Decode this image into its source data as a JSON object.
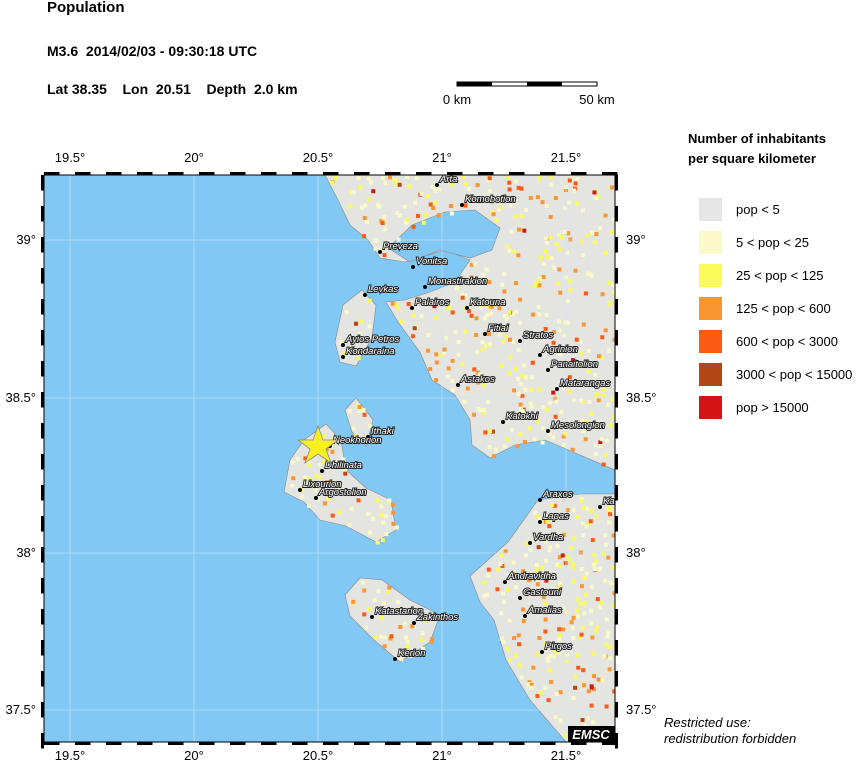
{
  "header": {
    "title": "Population",
    "event": "M3.6  2014/02/03 - 09:30:18 UTC",
    "location": "Lat 38.35    Lon  20.51    Depth  2.0 km"
  },
  "scale_bar": {
    "start": "0 km",
    "end": "50 km"
  },
  "axes": {
    "lon_ticks": [
      "19.5°",
      "20°",
      "20.5°",
      "21°",
      "21.5°"
    ],
    "lat_ticks": [
      "39°",
      "38.5°",
      "38°",
      "37.5°"
    ]
  },
  "towns": [
    "Arta",
    "Komobotion",
    "Preveza",
    "Vonitsa",
    "Levkas",
    "Monastirakion",
    "Palairos",
    "Katouna",
    "Ayios Petros",
    "Kondaraina",
    "Fitiai",
    "Stratos",
    "Agrinion",
    "Panaitolion",
    "Matarangas",
    "Astakos",
    "Katokhi",
    "Mesolongion",
    "Ithaki",
    "Neokhorion",
    "Dhilinata",
    "Lixourion",
    "Argostolion",
    "Araxos",
    "Lapas",
    "Vardha",
    "Andravidha",
    "Gastouni",
    "Amalias",
    "Katastarion",
    "Zakinthos",
    "Kerion",
    "Pirgos",
    "Kato Al"
  ],
  "legend": {
    "title": [
      "Number of inhabitants",
      "per square kilometer"
    ],
    "items": [
      {
        "label": "pop < 5",
        "color": "#e6e6e6"
      },
      {
        "label": "5 < pop < 25",
        "color": "#fafac8"
      },
      {
        "label": "25 < pop < 125",
        "color": "#fafa5a"
      },
      {
        "label": "125 < pop < 600",
        "color": "#fa9632"
      },
      {
        "label": "600 < pop < 3000",
        "color": "#fa5a14"
      },
      {
        "label": "3000 < pop < 15000",
        "color": "#b44614"
      },
      {
        "label": "pop > 15000",
        "color": "#d21414"
      }
    ]
  },
  "badge": "EMSC",
  "footer": [
    "Restricted use:",
    "redistribution forbidden"
  ]
}
